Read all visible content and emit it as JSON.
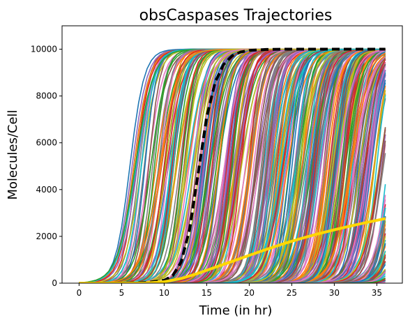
{
  "chart_data": {
    "type": "line",
    "title": "obsCaspases Trajectories",
    "xlabel": "Time (in hr)",
    "ylabel": "Molecules/Cell",
    "xlim": [
      -2,
      38
    ],
    "ylim": [
      0,
      11000
    ],
    "xticks": [
      0,
      5,
      10,
      15,
      20,
      25,
      30,
      35
    ],
    "yticks": [
      0,
      2000,
      4000,
      6000,
      8000,
      10000
    ],
    "grid": false,
    "legend": "none",
    "background_trajectories": {
      "description": "many stochastic sigmoidal trajectories from 0 to 10000",
      "count": 420,
      "x_range": [
        0,
        36
      ],
      "max_value": 10000,
      "midpoint_time_range": [
        5.8,
        40
      ],
      "palette": [
        "#1f77b4",
        "#ff7f0e",
        "#2ca02c",
        "#d62728",
        "#9467bd",
        "#8c564b",
        "#e377c2",
        "#7f7f7f",
        "#bcbd22",
        "#17becf"
      ]
    },
    "series": [
      {
        "style": "dashed",
        "color": "#000000",
        "x": [
          0,
          4,
          8,
          10,
          11,
          12,
          13,
          14,
          15,
          16,
          17,
          18,
          19,
          20,
          22,
          24,
          26,
          30,
          36
        ],
        "values": [
          0,
          2,
          30,
          120,
          320,
          900,
          2300,
          4700,
          7100,
          8600,
          9350,
          9720,
          9880,
          9950,
          9990,
          10000,
          10000,
          10000,
          10000
        ]
      },
      {
        "style": "solid",
        "color": "#ffd700",
        "x": [
          0,
          4,
          8,
          10,
          12,
          14,
          16,
          18,
          20,
          22,
          24,
          26,
          28,
          30,
          32,
          34,
          36
        ],
        "values": [
          0,
          0,
          10,
          60,
          200,
          420,
          680,
          930,
          1190,
          1440,
          1680,
          1900,
          2100,
          2280,
          2450,
          2610,
          2760
        ]
      }
    ]
  }
}
